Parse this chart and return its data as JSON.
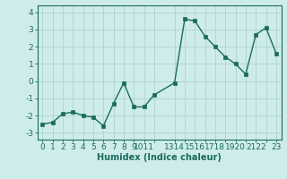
{
  "x": [
    0,
    1,
    2,
    3,
    4,
    5,
    6,
    7,
    8,
    9,
    10,
    11,
    13,
    14,
    15,
    16,
    17,
    18,
    19,
    20,
    21,
    22,
    23
  ],
  "y": [
    -2.5,
    -2.4,
    -1.9,
    -1.8,
    -2.0,
    -2.1,
    -2.6,
    -1.3,
    -0.1,
    -1.5,
    -1.5,
    -0.8,
    -0.1,
    3.6,
    3.5,
    2.6,
    2.0,
    1.4,
    1.0,
    0.4,
    2.7,
    3.1,
    1.6
  ],
  "line_color": "#1a6b5e",
  "marker": "s",
  "marker_size": 2.5,
  "line_width": 1.0,
  "bg_color": "#ceecea",
  "grid_color": "#aed4d0",
  "xlabel": "Humidex (Indice chaleur)",
  "ylim": [
    -3.4,
    4.4
  ],
  "xlim": [
    -0.5,
    23.5
  ],
  "yticks": [
    -3,
    -2,
    -1,
    0,
    1,
    2,
    3,
    4
  ],
  "ytick_labels": [
    "-3",
    "-2",
    "-1",
    "0",
    "1",
    "2",
    "3",
    "4"
  ],
  "xtick_pos": [
    0,
    1,
    2,
    3,
    4,
    5,
    6,
    7,
    8,
    9,
    10,
    11,
    13,
    14,
    15,
    16,
    17,
    18,
    19,
    20,
    21,
    22,
    23
  ],
  "xtick_lbls": [
    "0",
    "1",
    "2",
    "3",
    "4",
    "5",
    "6",
    "7",
    "8",
    "9",
    "1011",
    "",
    "1314",
    "",
    "1516",
    "",
    "1718",
    "",
    "1920",
    "",
    "2122",
    "",
    "23"
  ],
  "xlabel_fontsize": 7,
  "tick_fontsize": 6.5
}
